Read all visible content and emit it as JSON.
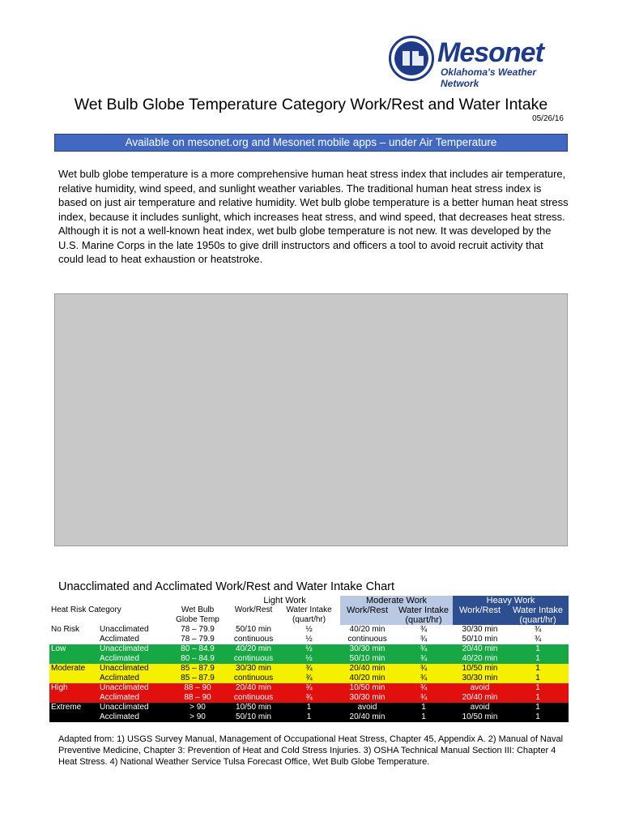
{
  "logo": {
    "name": "Mesonet",
    "tagline": "Oklahoma's Weather Network"
  },
  "title": "Wet Bulb Globe Temperature Category Work/Rest and Water Intake",
  "date": "05/26/16",
  "banner": "Available on mesonet.org and Mesonet mobile apps – under Air Temperature",
  "intro": "Wet bulb globe temperature is a more comprehensive human heat stress index that includes air temperature, relative humidity, wind speed, and sunlight weather variables. The traditional human heat stress index is based on just air temperature and relative humidity. Wet bulb globe temperature is a better human heat stress index, because it includes sunlight, which increases heat stress, and wind speed, that decreases heat stress. Although it is not a well-known heat index, wet bulb globe temperature is not new. It was developed by the U.S. Marine Corps in the late 1950s to give drill instructors and officers a tool to avoid recruit activity that could lead to heat exhaustion or heatstroke.",
  "chart_title": "Unacclimated and Acclimated Work/Rest and Water Intake Chart",
  "table": {
    "groups": {
      "light": "Light Work",
      "moderate": "Moderate Work",
      "heavy": "Heavy Work"
    },
    "cols": {
      "category": "Heat Risk Category",
      "wbgt1": "Wet Bulb",
      "wbgt2": "Globe Temp",
      "wr": "Work/Rest",
      "wi1": "Water Intake",
      "wi2": "(quart/hr)"
    },
    "rows": [
      {
        "cat": "No Risk",
        "acc": "Unacclimated",
        "temp": "78 – 79.9",
        "lw": "50/10 min",
        "li": "½",
        "mw": "40/20 min",
        "mi": "¾",
        "hw": "30/30 min",
        "hi": "¾"
      },
      {
        "cat": "",
        "acc": "Acclimated",
        "temp": "78 – 79.9",
        "lw": "continuous",
        "li": "½",
        "mw": "continuous",
        "mi": "¾",
        "hw": "50/10 min",
        "hi": "¾"
      },
      {
        "cat": "Low",
        "acc": "Unacclimated",
        "temp": "80 – 84.9",
        "lw": "40/20 min",
        "li": "½",
        "mw": "30/30 min",
        "mi": "¾",
        "hw": "20/40 min",
        "hi": "1"
      },
      {
        "cat": "",
        "acc": "Acclimated",
        "temp": "80 – 84.9",
        "lw": "continuous",
        "li": "½",
        "mw": "50/10 min",
        "mi": "¾",
        "hw": "40/20 min",
        "hi": "1"
      },
      {
        "cat": "Moderate",
        "acc": "Unacclimated",
        "temp": "85 – 87.9",
        "lw": "30/30 min",
        "li": "¾",
        "mw": "20/40 min",
        "mi": "¾",
        "hw": "10/50 min",
        "hi": "1"
      },
      {
        "cat": "",
        "acc": "Acclimated",
        "temp": "85 – 87.9",
        "lw": "continuous",
        "li": "¾",
        "mw": "40/20 min",
        "mi": "¾",
        "hw": "30/30 min",
        "hi": "1"
      },
      {
        "cat": "High",
        "acc": "Unacclimated",
        "temp": "88 – 90",
        "lw": "20/40 min",
        "li": "¾",
        "mw": "10/50 min",
        "mi": "¾",
        "hw": "avoid",
        "hi": "1"
      },
      {
        "cat": "",
        "acc": "Acclimated",
        "temp": "88 – 90",
        "lw": "continuous",
        "li": "¾",
        "mw": "30/30 min",
        "mi": "¾",
        "hw": "20/40 min",
        "hi": "1"
      },
      {
        "cat": "Extreme",
        "acc": "Unacclimated",
        "temp": "> 90",
        "lw": "10/50 min",
        "li": "1",
        "mw": "avoid",
        "mi": "1",
        "hw": "avoid",
        "hi": "1"
      },
      {
        "cat": "",
        "acc": "Acclimated",
        "temp": "> 90",
        "lw": "50/10 min",
        "li": "1",
        "mw": "20/40 min",
        "mi": "1",
        "hw": "10/50 min",
        "hi": "1"
      }
    ]
  },
  "footnote": "Adapted from: 1) USGS Survey Manual, Management of Occupational Heat Stress, Chapter 45, Appendix A. 2) Manual of Naval Preventive Medicine, Chapter 3: Prevention of Heat and Cold Stress Injuries. 3) OSHA Technical Manual Section III: Chapter 4 Heat Stress. 4) National Weather Service Tulsa Forecast Office, Wet Bulb Globe Temperature."
}
